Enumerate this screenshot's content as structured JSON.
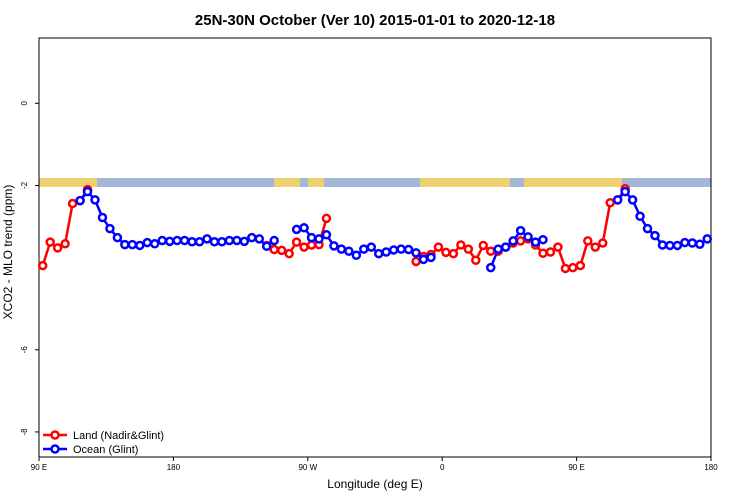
{
  "chart_data": {
    "type": "line",
    "title": "25N-30N October (Ver 10)   2015-01-01 to 2020-12-18",
    "x_label": "Longitude (deg E)",
    "y_label": "XCO2 - MLO trend (ppm)",
    "xlim": [
      90,
      540
    ],
    "xticks": [
      {
        "value": 90,
        "label": "90 E"
      },
      180,
      {
        "value": 270,
        "label": "90 W"
      },
      {
        "value": 360,
        "label": "0"
      },
      {
        "value": 450,
        "label": "90 E"
      },
      {
        "value": 540,
        "label": "180"
      }
    ],
    "ylim": [
      1.59,
      -8.61
    ],
    "yticks": [
      0,
      -2,
      -6,
      -8
    ],
    "legend": "bottom-left",
    "x": [
      92.5,
      97.5,
      102.5,
      107.5,
      112.5,
      117.5,
      122.5,
      127.5,
      132.5,
      137.5,
      142.5,
      147.5,
      152.5,
      157.5,
      162.5,
      167.5,
      172.5,
      177.5,
      182.5,
      187.5,
      192.5,
      197.5,
      202.5,
      207.5,
      212.5,
      217.5,
      222.5,
      227.5,
      232.5,
      237.5,
      242.5,
      247.5,
      252.5,
      257.5,
      262.5,
      267.5,
      272.5,
      277.5,
      282.5,
      287.5,
      292.5,
      297.5,
      302.5,
      307.5,
      312.5,
      317.5,
      322.5,
      327.5,
      332.5,
      337.5,
      342.5,
      347.5,
      352.5,
      357.5,
      362.5,
      367.5,
      372.5,
      377.5,
      382.5,
      387.5,
      392.5,
      397.5,
      402.5,
      407.5,
      412.5,
      417.5,
      422.5,
      427.5,
      432.5,
      437.5,
      442.5,
      447.5,
      452.5,
      457.5,
      462.5,
      467.5,
      472.5,
      477.5,
      482.5,
      487.5,
      492.5,
      497.5,
      502.5,
      507.5,
      512.5,
      517.5,
      522.5,
      527.5,
      532.5,
      537.5
    ],
    "series": [
      {
        "name": "Land (Nadir&Glint)",
        "color": "#ff0000",
        "values": [
          -3.95,
          -3.38,
          -3.52,
          -3.42,
          -2.44,
          -2.37,
          -2.1,
          null,
          null,
          null,
          null,
          null,
          null,
          null,
          null,
          null,
          null,
          null,
          null,
          null,
          null,
          null,
          null,
          null,
          null,
          null,
          null,
          null,
          null,
          null,
          -3.46,
          -3.56,
          -3.58,
          -3.66,
          -3.38,
          -3.5,
          -3.45,
          -3.44,
          -2.8,
          null,
          null,
          null,
          null,
          null,
          null,
          null,
          null,
          null,
          null,
          null,
          -3.85,
          -3.73,
          -3.68,
          -3.5,
          -3.63,
          -3.66,
          -3.45,
          -3.55,
          -3.82,
          -3.46,
          -3.6,
          -3.6,
          -3.5,
          -3.4,
          -3.35,
          -3.3,
          -3.45,
          -3.65,
          -3.62,
          -3.5,
          -4.02,
          -4.0,
          -3.95,
          -3.35,
          -3.5,
          -3.4,
          -2.42,
          -2.35,
          -2.08,
          null,
          null,
          null,
          null,
          null,
          null,
          null,
          null,
          null,
          null,
          null
        ]
      },
      {
        "name": "Ocean (Glint)",
        "color": "#0000ff",
        "values": [
          null,
          null,
          null,
          null,
          null,
          -2.37,
          -2.15,
          -2.35,
          -2.78,
          -3.05,
          -3.27,
          -3.44,
          -3.44,
          -3.46,
          -3.39,
          -3.42,
          -3.34,
          -3.36,
          -3.34,
          -3.34,
          -3.37,
          -3.37,
          -3.3,
          -3.37,
          -3.37,
          -3.34,
          -3.34,
          -3.36,
          -3.27,
          -3.3,
          -3.48,
          -3.34,
          null,
          null,
          -3.07,
          -3.03,
          -3.27,
          -3.3,
          -3.2,
          -3.47,
          -3.55,
          -3.6,
          -3.7,
          -3.55,
          -3.5,
          -3.66,
          -3.62,
          -3.57,
          -3.55,
          -3.56,
          -3.64,
          -3.8,
          -3.75,
          null,
          null,
          null,
          null,
          null,
          null,
          null,
          -4.0,
          -3.55,
          -3.5,
          -3.35,
          -3.1,
          -3.25,
          -3.38,
          -3.32,
          null,
          null,
          null,
          null,
          null,
          null,
          null,
          null,
          null,
          -2.35,
          -2.15,
          -2.35,
          -2.75,
          -3.05,
          -3.22,
          -3.45,
          -3.46,
          -3.46,
          -3.39,
          -3.4,
          -3.43,
          -3.3
        ]
      }
    ]
  }
}
